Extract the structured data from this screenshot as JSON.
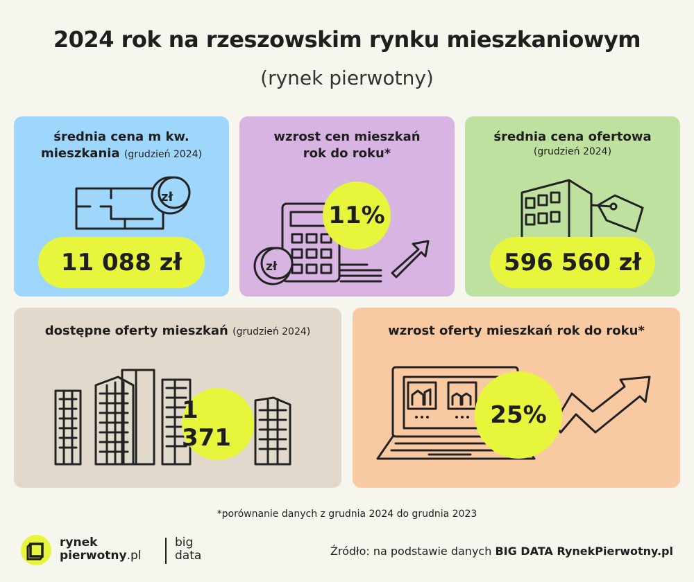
{
  "title": "2024 rok na rzeszowskim rynku mieszkaniowym",
  "subtitle": "(rynek pierwotny)",
  "colors": {
    "accent": "#e7f53c",
    "blue": "#9fd6fb",
    "purple": "#d8b4e2",
    "green": "#bfe1a0",
    "beige": "#e2d9cd",
    "orange": "#f9c9a1"
  },
  "cards": {
    "price_sqm": {
      "title_line1": "średnia cena m kw.",
      "title_line2": "mieszkania",
      "note": "(grudzień 2024)",
      "value": "11 088 zł",
      "icon": "floor-plan-coin-icon",
      "coin_label": "zł"
    },
    "price_growth": {
      "title_line1": "wzrost cen mieszkań",
      "title_line2": "rok do roku*",
      "value": "11%",
      "icon": "calculator-coins-arrow-icon",
      "coin_label": "zł"
    },
    "offer_price": {
      "title": "średnia cena ofertowa",
      "note": "(grudzień 2024)",
      "value": "596 560 zł",
      "icon": "building-price-tag-icon"
    },
    "available": {
      "title": "dostępne oferty mieszkań",
      "note": "(grudzień 2024)",
      "value": "1 371",
      "icon": "city-buildings-icon"
    },
    "offer_growth": {
      "title": "wzrost oferty mieszkań rok do roku*",
      "value": "25%",
      "icon": "laptop-growth-arrow-icon"
    }
  },
  "footnote": "*porównanie danych z grudnia 2024 do grudnia 2023",
  "logo": {
    "line1": "rynek",
    "line2_bold": "pierwotny",
    "line2_thin": ".pl",
    "partner_line1": "big",
    "partner_line2": "data"
  },
  "source": {
    "prefix": "Źródło: na podstawie danych ",
    "bold": "BIG DATA RynekPierwotny.pl"
  }
}
